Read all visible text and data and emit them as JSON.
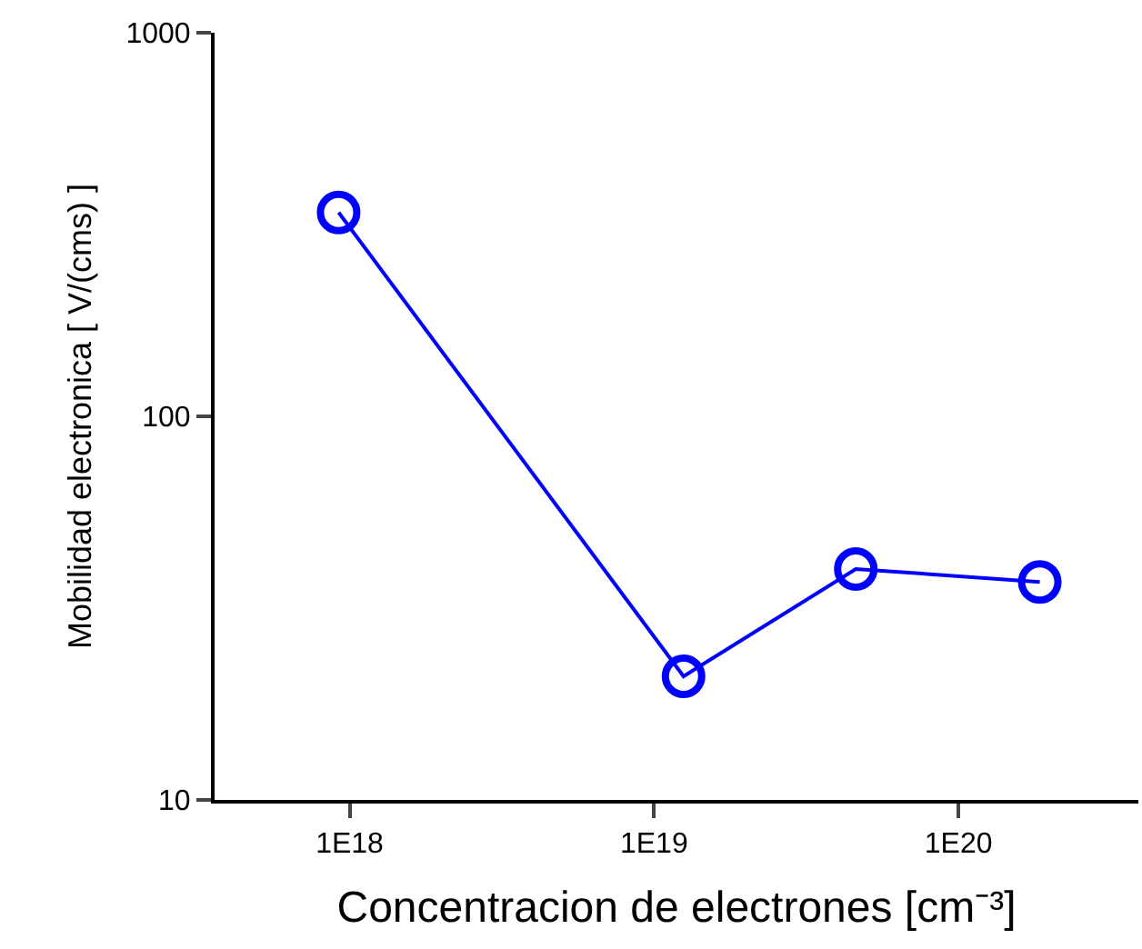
{
  "chart_data": {
    "type": "line",
    "xlabel": "Concentracion de electrones [cm⁻³]",
    "ylabel": "Mobilidad electronica [ V/(cms) ]",
    "x": [
      9.2e+17,
      1.25e+19,
      4.6e+19,
      1.85e+20
    ],
    "series": [
      {
        "color": "#0000ff",
        "values": [
          340,
          21,
          40,
          37
        ]
      }
    ],
    "log": "xy",
    "xlim": [
      3.6e+17,
      3.9e+20
    ],
    "ylim": [
      10,
      1000
    ],
    "xticks": [
      {
        "value": 1e+18,
        "label": "1E18"
      },
      {
        "value": 1e+19,
        "label": "1E19"
      },
      {
        "value": 1e+20,
        "label": "1E20"
      }
    ],
    "yticks": [
      10,
      100,
      1000
    ],
    "grid": false,
    "marker": "circle",
    "line_style": "solid"
  }
}
